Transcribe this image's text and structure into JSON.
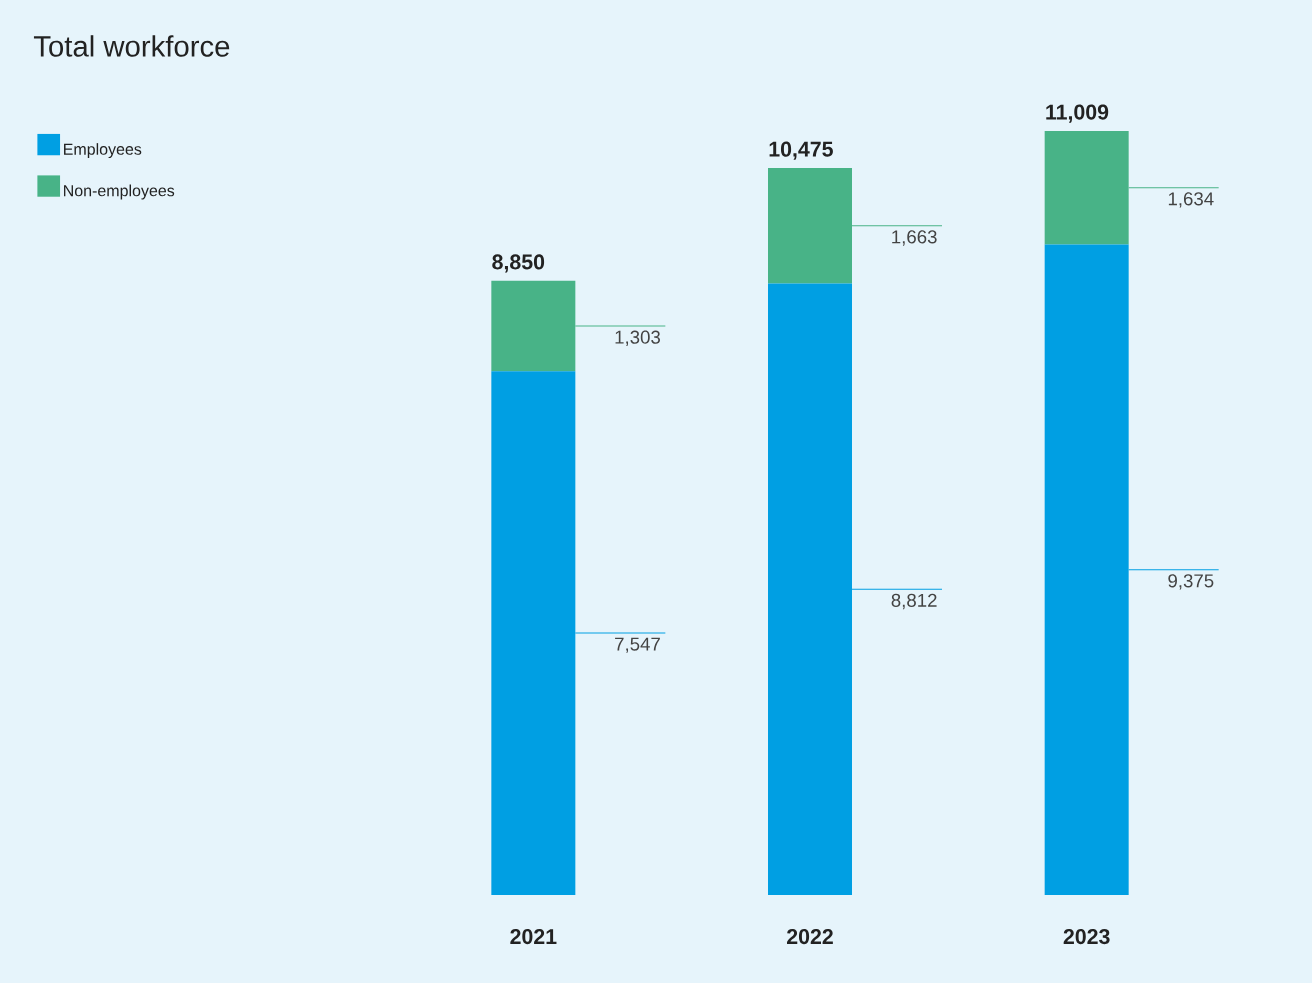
{
  "chart_data": {
    "type": "bar",
    "title": "Total workforce",
    "categories": [
      "2021",
      "2022",
      "2023"
    ],
    "stacked": true,
    "legend": "top left",
    "series": [
      {
        "name": "Employees",
        "color": "#009fe3",
        "values": [
          7547,
          8812,
          9375
        ],
        "value_labels": [
          "7,547",
          "8,812",
          "9,375"
        ]
      },
      {
        "name": "Non-employees",
        "color": "#48b387",
        "values": [
          1303,
          1663,
          1634
        ],
        "value_labels": [
          "1,303",
          "1,663",
          "1,634"
        ]
      }
    ],
    "totals": [
      "8,850",
      "10,475",
      "11,009"
    ]
  }
}
